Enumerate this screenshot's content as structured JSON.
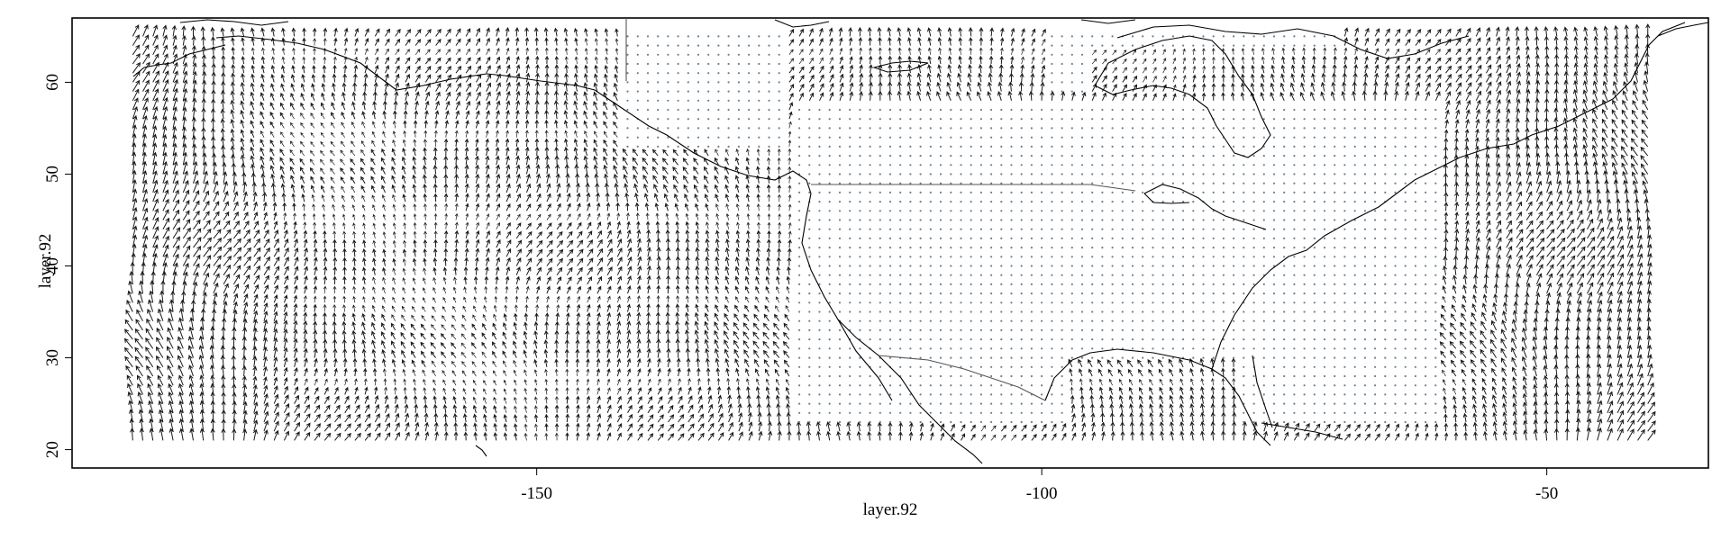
{
  "chart_data": {
    "type": "vector-field map",
    "xlabel": "layer.92",
    "ylabel": "layer.92",
    "x_ticks": [
      "-150",
      "-100",
      "-50"
    ],
    "x_tick_values": [
      -150,
      -100,
      -50
    ],
    "y_ticks": [
      "20",
      "30",
      "40",
      "50",
      "60"
    ],
    "y_tick_values": [
      20,
      30,
      40,
      50,
      60
    ],
    "xlim": [
      -196,
      -34
    ],
    "ylim": [
      18,
      67
    ],
    "grid_extent": {
      "lon": [
        -190,
        -40
      ],
      "lat": [
        21,
        65
      ]
    },
    "grid_step_deg": 1,
    "colors": {
      "arrow": "#1a1a1a",
      "calm_dot": "#6e7f8e",
      "coast": "#000000",
      "border": "#555555"
    }
  }
}
